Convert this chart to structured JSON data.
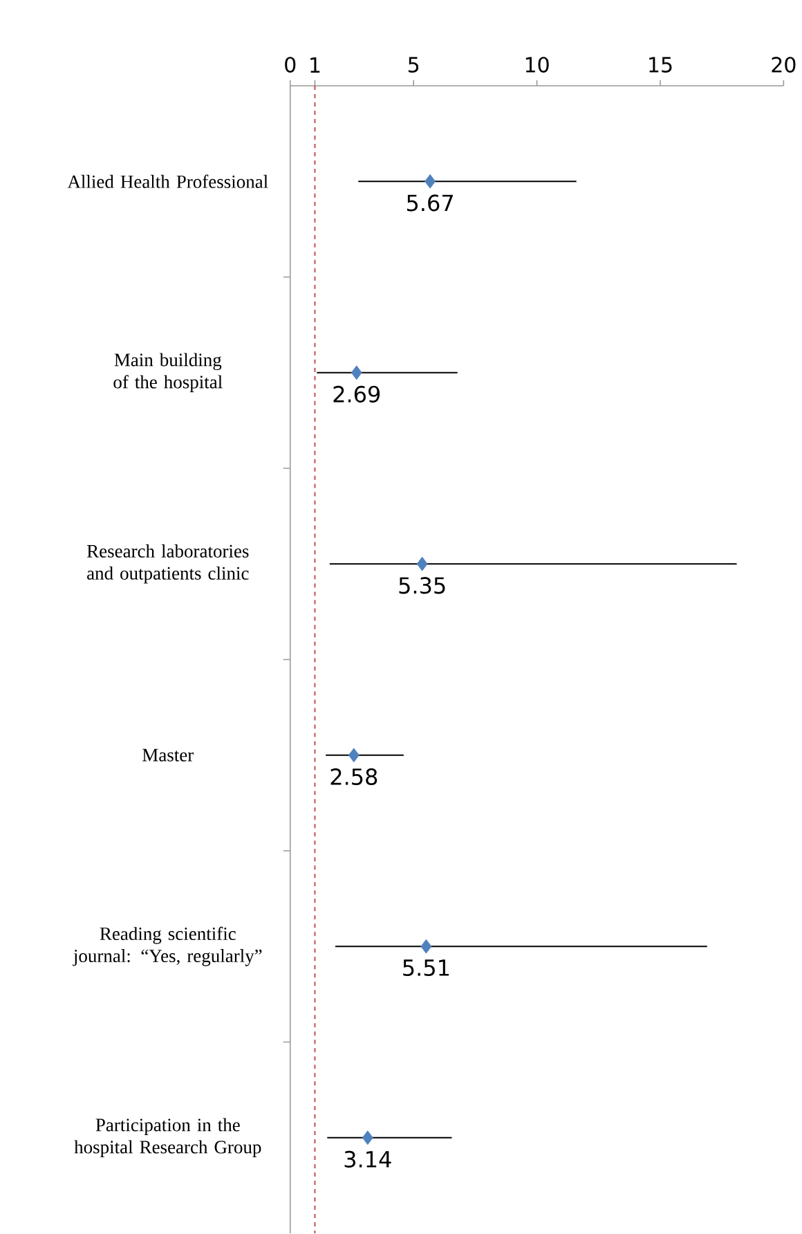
{
  "chart_data": {
    "type": "scatter",
    "orientation": "horizontal",
    "categories": [
      "Allied Health Professional",
      "Main building of the hospital",
      "Research laboratories and outpatients clinic",
      "Master",
      "Reading scientific journal: “Yes, regularly”",
      "Participation in the hospital Research Group"
    ],
    "values": [
      5.67,
      2.69,
      5.35,
      2.58,
      5.51,
      3.14
    ],
    "errors": [
      [
        2.76,
        11.6
      ],
      [
        1.08,
        6.78
      ],
      [
        1.6,
        18.1
      ],
      [
        1.44,
        4.6
      ],
      [
        1.83,
        16.9
      ],
      [
        1.5,
        6.55
      ]
    ],
    "color": "#4f81bd",
    "marker": "diamond",
    "data_labels": true,
    "xlim": [
      0,
      20
    ],
    "xticks": [
      0,
      1,
      5,
      10,
      15,
      20
    ],
    "ref_lines": [
      {
        "axis": "x",
        "value": 1,
        "color": "#c0504d",
        "line_style": "dashed"
      }
    ]
  }
}
